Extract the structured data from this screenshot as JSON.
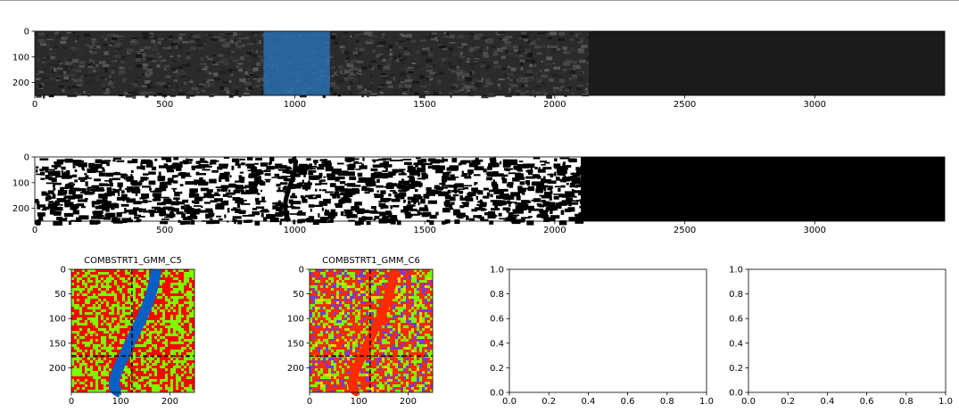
{
  "chart_data": [
    {
      "type": "image",
      "xticks": [
        0,
        500,
        1000,
        1500,
        2000,
        2500,
        3000
      ],
      "yticks": [
        0,
        100,
        200
      ],
      "xlim": [
        0,
        3500
      ],
      "ylim": [
        250,
        0
      ],
      "highlight_region": {
        "x": [
          880,
          1135
        ],
        "color": "#2a6fae"
      }
    },
    {
      "type": "image",
      "xticks": [
        0,
        500,
        1000,
        1500,
        2000,
        2500,
        3000
      ],
      "yticks": [
        0,
        100,
        200
      ],
      "xlim": [
        0,
        3500
      ],
      "ylim": [
        250,
        0
      ]
    },
    {
      "type": "image",
      "title": "COMBSTRT1_GMM_C5",
      "xticks": [
        0,
        100,
        200
      ],
      "yticks": [
        0,
        50,
        100,
        150,
        200
      ],
      "xlim": [
        0,
        250
      ],
      "ylim": [
        250,
        0
      ],
      "crosshair": {
        "x": 123,
        "y": 176
      },
      "colors": [
        "#ff0000",
        "#7bff00",
        "#0a5fc4"
      ]
    },
    {
      "type": "image",
      "title": "COMBSTRT1_GMM_C6",
      "xticks": [
        0,
        100,
        200
      ],
      "yticks": [
        0,
        50,
        100,
        150,
        200
      ],
      "xlim": [
        0,
        250
      ],
      "ylim": [
        250,
        0
      ],
      "crosshair": {
        "x": 123,
        "y": 176
      },
      "colors": [
        "#ff2a00",
        "#7bff00",
        "#7a3ad8",
        "#ffd400"
      ]
    },
    {
      "type": "empty",
      "xticks": [
        "0.0",
        "0.2",
        "0.4",
        "0.6",
        "0.8",
        "1.0"
      ],
      "yticks": [
        "0.0",
        "0.2",
        "0.4",
        "0.6",
        "0.8",
        "1.0"
      ],
      "xlim": [
        0,
        1
      ],
      "ylim": [
        0,
        1
      ]
    },
    {
      "type": "empty",
      "xticks": [
        "0.0",
        "0.2",
        "0.4",
        "0.6",
        "0.8",
        "1.0"
      ],
      "yticks": [
        "0.0",
        "0.2",
        "0.4",
        "0.6",
        "0.8",
        "1.0"
      ],
      "xlim": [
        0,
        1
      ],
      "ylim": [
        0,
        1
      ]
    }
  ]
}
